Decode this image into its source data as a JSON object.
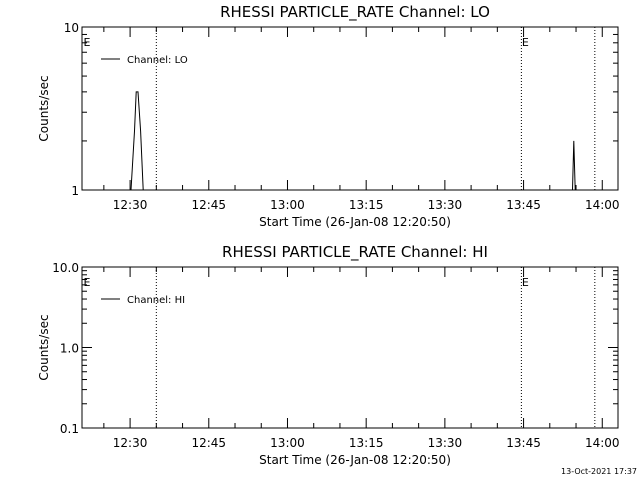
{
  "chart_data": [
    {
      "type": "line",
      "title": "RHESSI PARTICLE_RATE Channel: LO",
      "xlabel": "Start Time (26-Jan-08 12:20:50)",
      "ylabel": "Counts/sec",
      "y_scale": "log",
      "xlim": [
        "12:20:50",
        "14:03:00"
      ],
      "ylim": [
        1,
        10
      ],
      "x_ticks": [
        "12:30",
        "12:45",
        "13:00",
        "13:15",
        "13:30",
        "13:45",
        "14:00"
      ],
      "y_ticks": [
        "1",
        "10"
      ],
      "grid": false,
      "legend_position": "top-left",
      "series": [
        {
          "name": "Channel: LO",
          "x": [
            "12:30:10",
            "12:30:50",
            "12:31:10",
            "12:31:30",
            "12:32:00",
            "12:32:30",
            "12:32:50",
            "13:54:20",
            "13:54:35",
            "13:54:50",
            "13:55:00"
          ],
          "y": [
            1.0,
            2.3,
            4.0,
            4.0,
            2.3,
            1.0,
            1.0,
            1.0,
            2.0,
            1.0,
            1.0
          ]
        }
      ],
      "vertical_markers": [
        {
          "time": "12:35:00",
          "style": "dotted"
        },
        {
          "time": "13:44:35",
          "style": "dotted",
          "label": "E"
        },
        {
          "time": "13:58:35",
          "style": "dotted"
        }
      ],
      "corner_label": "E"
    },
    {
      "type": "line",
      "title": "RHESSI PARTICLE_RATE Channel: HI",
      "xlabel": "Start Time (26-Jan-08 12:20:50)",
      "ylabel": "Counts/sec",
      "y_scale": "log",
      "xlim": [
        "12:20:50",
        "14:03:00"
      ],
      "ylim": [
        0.1,
        10
      ],
      "x_ticks": [
        "12:30",
        "12:45",
        "13:00",
        "13:15",
        "13:30",
        "13:45",
        "14:00"
      ],
      "y_ticks": [
        "0.1",
        "1.0",
        "10.0"
      ],
      "grid": false,
      "legend_position": "top-left",
      "series": [
        {
          "name": "Channel: HI",
          "x": [],
          "y": []
        }
      ],
      "vertical_markers": [
        {
          "time": "12:35:00",
          "style": "dotted"
        },
        {
          "time": "13:44:35",
          "style": "dotted",
          "label": "E"
        },
        {
          "time": "13:58:35",
          "style": "dotted"
        }
      ],
      "corner_label": "E"
    }
  ],
  "footer": {
    "timestamp": "13-Oct-2021 17:37"
  }
}
